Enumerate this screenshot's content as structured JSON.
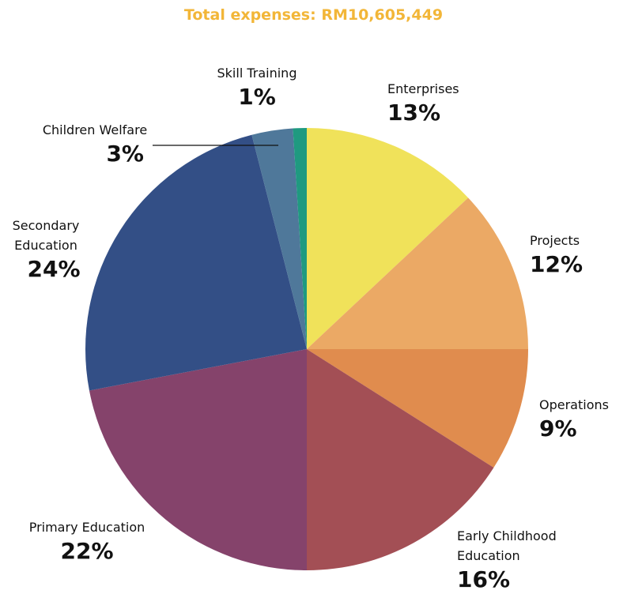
{
  "chart_data": {
    "type": "pie",
    "title": "Total expenses: RM10,605,449",
    "categories": [
      "Enterprises",
      "Projects",
      "Operations",
      "Early Childhood Education",
      "Primary Education",
      "Secondary Education",
      "Children Welfare",
      "Skill Training"
    ],
    "values": [
      13,
      12,
      9,
      16,
      22,
      24,
      3,
      1
    ],
    "value_labels": [
      "13%",
      "12%",
      "9%",
      "16%",
      "22%",
      "24%",
      "3%",
      "1%"
    ],
    "colors": [
      "#f0e25a",
      "#eba965",
      "#e08c4e",
      "#a34f55",
      "#85436b",
      "#334f86",
      "#4f789a",
      "#1f9a80"
    ]
  }
}
